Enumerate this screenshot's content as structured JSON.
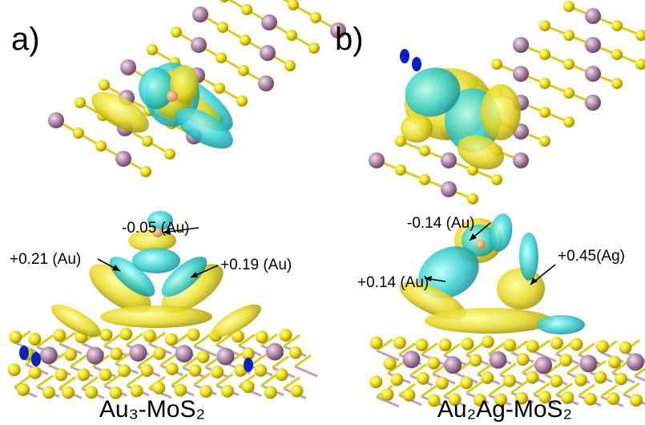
{
  "panels": [
    {
      "label": "a)",
      "annotations": [
        "-0.05 (Au)",
        "+0.21 (Au)",
        "+0.19 (Au)"
      ],
      "caption": "Au₃-MoS₂"
    },
    {
      "label": "b)",
      "annotations": [
        "-0.14 (Au)",
        "+0.14 (Au)",
        "+0.45(Ag)"
      ],
      "caption": "Au₂Ag-MoS₂"
    }
  ]
}
